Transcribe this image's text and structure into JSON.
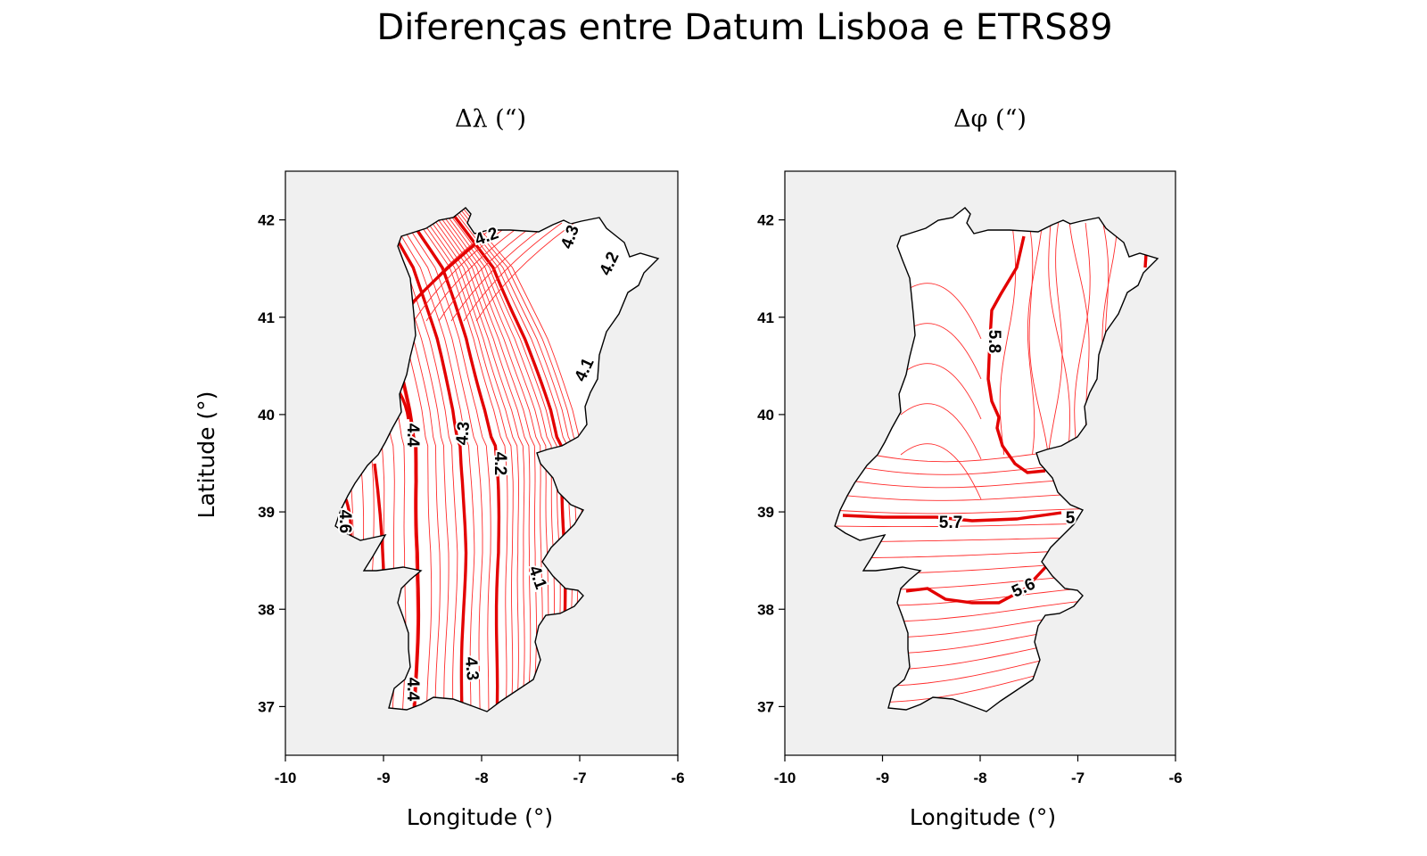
{
  "title": "Diferenças entre Datum Lisboa e ETRS89",
  "colors": {
    "contour": "#ff2a2a",
    "contour_major": "#e30000",
    "panel_bg": "#f0f0f0",
    "coast": "#000000"
  },
  "map_data": [
    {
      "panel_title": "Δλ (“)",
      "xlabel": "Longitude (°)",
      "ylabel": "Latitude (°)",
      "xlim": [
        -10,
        -6
      ],
      "ylim": [
        36.5,
        42.5
      ],
      "xticks": [
        "-10",
        "-9",
        "-8",
        "-7",
        "-6"
      ],
      "yticks": [
        "37",
        "38",
        "39",
        "40",
        "41",
        "42"
      ],
      "contour_labels": [
        "4.2",
        "4.3",
        "4.2",
        "4.1",
        "4.4",
        "4.3",
        "4.2",
        "4.6",
        "4.1",
        "4.4",
        "4.3"
      ]
    },
    {
      "panel_title": "Δφ (“)",
      "xlabel": "Longitude (°)",
      "ylabel": "",
      "xlim": [
        -10,
        -6
      ],
      "ylim": [
        36.5,
        42.5
      ],
      "xticks": [
        "-10",
        "-9",
        "-8",
        "-7",
        "-6"
      ],
      "yticks": [
        "37",
        "38",
        "39",
        "40",
        "41",
        "42"
      ],
      "contour_labels": [
        "5.8",
        "5.7",
        "5",
        "5.6"
      ]
    }
  ]
}
